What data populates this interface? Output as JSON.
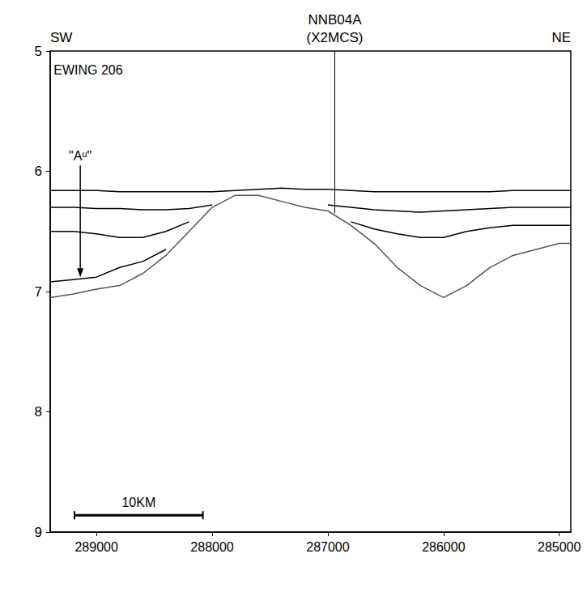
{
  "chart_data": {
    "type": "line",
    "x": [
      289400,
      289200,
      289000,
      288800,
      288600,
      288400,
      288200,
      288000,
      287800,
      287600,
      287400,
      287200,
      287000,
      286800,
      286600,
      286400,
      286200,
      286000,
      285800,
      285600,
      285400,
      285200,
      285000,
      284900
    ],
    "series": [
      {
        "color": "#000000",
        "line_style": "solid",
        "values": [
          6.16,
          6.16,
          6.16,
          6.17,
          6.17,
          6.17,
          6.17,
          6.17,
          6.16,
          6.15,
          6.14,
          6.15,
          6.15,
          6.16,
          6.17,
          6.17,
          6.17,
          6.17,
          6.17,
          6.17,
          6.16,
          6.16,
          6.16,
          6.16
        ]
      },
      {
        "color": "#000000",
        "line_style": "solid",
        "values": [
          6.3,
          6.3,
          6.31,
          6.31,
          6.32,
          6.32,
          6.31,
          6.28,
          null,
          null,
          null,
          null,
          6.28,
          6.3,
          6.32,
          6.33,
          6.34,
          6.33,
          6.32,
          6.31,
          6.3,
          6.3,
          6.3,
          6.3
        ]
      },
      {
        "color": "#000000",
        "line_style": "solid",
        "values": [
          6.5,
          6.5,
          6.52,
          6.55,
          6.55,
          6.5,
          6.42,
          null,
          null,
          null,
          null,
          null,
          null,
          6.42,
          6.48,
          6.52,
          6.55,
          6.55,
          6.5,
          6.47,
          6.45,
          6.45,
          6.45,
          6.45
        ]
      },
      {
        "color": "#000000",
        "line_style": "solid",
        "values": [
          6.92,
          6.9,
          6.88,
          6.8,
          6.75,
          6.65,
          null,
          null,
          null,
          null,
          null,
          null,
          null,
          null,
          null,
          null,
          null,
          null,
          null,
          null,
          null,
          null,
          null,
          null
        ]
      },
      {
        "color": "#555555",
        "line_style": "solid",
        "values": [
          7.05,
          7.02,
          6.98,
          6.95,
          6.85,
          6.7,
          6.5,
          6.3,
          6.2,
          6.2,
          6.25,
          6.3,
          6.33,
          6.45,
          6.6,
          6.8,
          6.95,
          7.05,
          6.95,
          6.8,
          6.7,
          6.65,
          6.6,
          6.6
        ]
      }
    ],
    "xlim": [
      289400,
      284900
    ],
    "xticks": [
      289000,
      288000,
      287000,
      286000,
      285000
    ],
    "ylim": [
      5,
      9
    ],
    "yticks": [
      5,
      6,
      7,
      8,
      9
    ],
    "grid": false,
    "corner_labels": {
      "left": "SW",
      "right": "NE"
    },
    "site": {
      "label": [
        "NNB04A",
        "(X2MCS)"
      ],
      "x": 286940,
      "y": [
        5,
        6.35
      ]
    },
    "annotations": [
      {
        "text": "EWING 206",
        "x": 289370,
        "y": 5.16
      },
      {
        "text": "\"Aᵘ\"",
        "x": 289140,
        "y": 5.87,
        "arrow_to": 6.88
      }
    ],
    "scale_bar": {
      "label": "10KM",
      "x": [
        289190,
        288080
      ],
      "y": 8.86
    }
  }
}
